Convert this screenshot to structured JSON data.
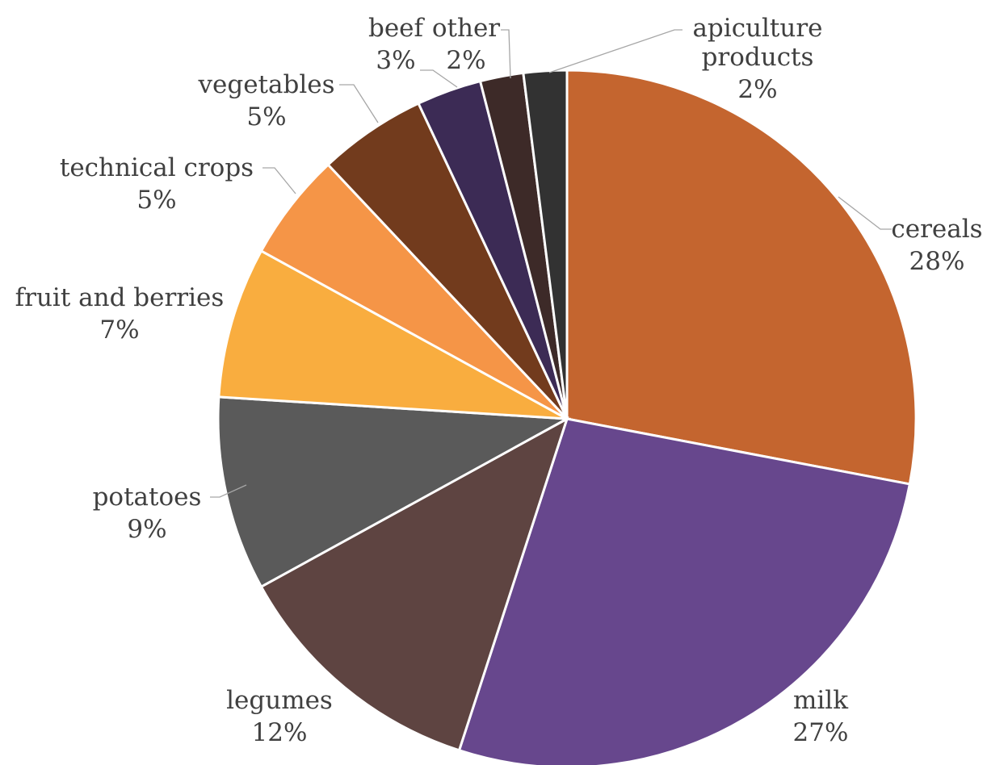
{
  "chart_data": {
    "type": "pie",
    "start_angle_deg": 0,
    "direction": "clockwise",
    "slices": [
      {
        "label": "cereals",
        "value": 28,
        "value_label": "28%",
        "color": "#c4652f"
      },
      {
        "label": "milk",
        "value": 27,
        "value_label": "27%",
        "color": "#67478d"
      },
      {
        "label": "legumes",
        "value": 12,
        "value_label": "12%",
        "color": "#5e4441"
      },
      {
        "label": "potatoes",
        "value": 9,
        "value_label": "9%",
        "color": "#5a5a5a"
      },
      {
        "label": "fruit and berries",
        "value": 7,
        "value_label": "7%",
        "color": "#f9ad3f"
      },
      {
        "label": "technical crops",
        "value": 5,
        "value_label": "5%",
        "color": "#f59547"
      },
      {
        "label": "vegetables",
        "value": 5,
        "value_label": "5%",
        "color": "#723b1d"
      },
      {
        "label": "beef",
        "value": 3,
        "value_label": "3%",
        "color": "#3c2b55"
      },
      {
        "label": "other",
        "value": 2,
        "value_label": "2%",
        "color": "#3d2a28"
      },
      {
        "label": "apiculture products",
        "value": 2,
        "value_label": "2%",
        "color": "#323232"
      }
    ]
  }
}
